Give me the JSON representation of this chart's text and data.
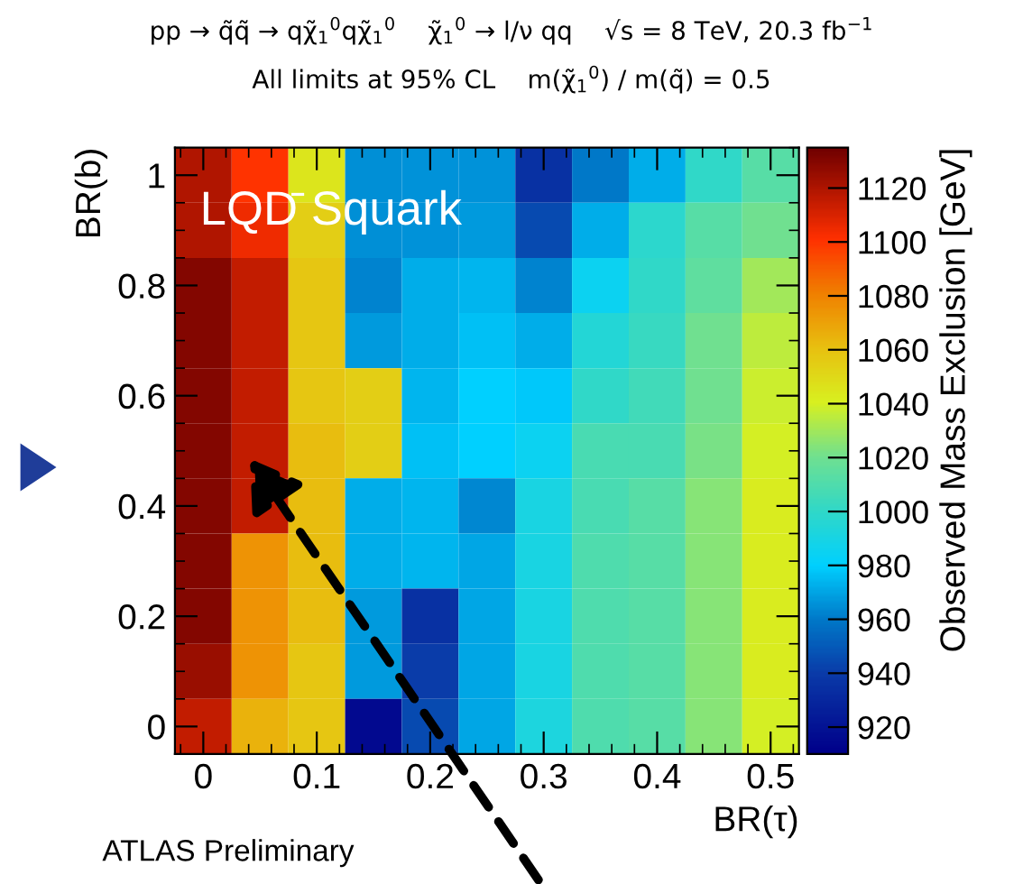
{
  "chart_data": {
    "type": "heatmap",
    "title": "pp → q̃q̃ → qχ̃$_{1}$$^{0}$qχ̃$_{1}$$^{0}$    χ̃$_{1}$$^{0}$ → l/ν qq    √s = 8 TeV, 20.3 fb$^{−1}$",
    "subtitle": "All limits at 95% CL    m(χ̃$_{1}$$^{0}$) / m(q̃) = 0.5",
    "xlabel": "BR(τ)",
    "ylabel": "BR(b)",
    "clabel": "Observed Mass Exclusion [GeV]",
    "annotations": [
      "LQD̄ Squark",
      "ATLAS Preliminary"
    ],
    "x": [
      0,
      0.05,
      0.1,
      0.15,
      0.2,
      0.25,
      0.3,
      0.35,
      0.4,
      0.45,
      0.5
    ],
    "y": [
      1.0,
      0.9,
      0.8,
      0.7,
      0.6,
      0.5,
      0.4,
      0.3,
      0.2,
      0.1,
      0
    ],
    "cells": [
      [
        1120,
        1100,
        1045,
        965,
        966,
        966,
        935,
        960,
        972,
        1000,
        1012
      ],
      [
        1120,
        1105,
        1055,
        965,
        966,
        968,
        945,
        972,
        998,
        1012,
        1020
      ],
      [
        1130,
        1115,
        1058,
        962,
        972,
        974,
        962,
        985,
        1000,
        1015,
        1030
      ],
      [
        1130,
        1115,
        1058,
        968,
        972,
        976,
        972,
        995,
        1003,
        1020,
        1035
      ],
      [
        1130,
        1115,
        1058,
        1055,
        974,
        980,
        978,
        1000,
        1005,
        1020,
        1038
      ],
      [
        1130,
        1115,
        1062,
        1055,
        976,
        980,
        985,
        1008,
        1008,
        1022,
        1040
      ],
      [
        1130,
        1115,
        1062,
        972,
        974,
        963,
        990,
        1008,
        1012,
        1025,
        1042
      ],
      [
        1130,
        1075,
        1062,
        972,
        974,
        970,
        990,
        1010,
        1012,
        1025,
        1042
      ],
      [
        1130,
        1075,
        1062,
        968,
        935,
        970,
        990,
        1010,
        1012,
        1025,
        1042
      ],
      [
        1125,
        1075,
        1058,
        968,
        940,
        970,
        990,
        1010,
        1012,
        1025,
        1042
      ],
      [
        1115,
        1065,
        1058,
        915,
        945,
        970,
        992,
        1010,
        1012,
        1025,
        1040
      ]
    ],
    "xlim": [
      -0.025,
      0.525
    ],
    "ylim": [
      -0.05,
      1.05
    ],
    "xticks": [
      0,
      0.1,
      0.2,
      0.3,
      0.4,
      0.5
    ],
    "yticks": [
      0,
      0.2,
      0.4,
      0.6,
      0.8,
      1
    ],
    "clim": [
      910,
      1135
    ],
    "cticks": [
      920,
      940,
      960,
      980,
      1000,
      1020,
      1040,
      1060,
      1080,
      1100,
      1120
    ]
  }
}
